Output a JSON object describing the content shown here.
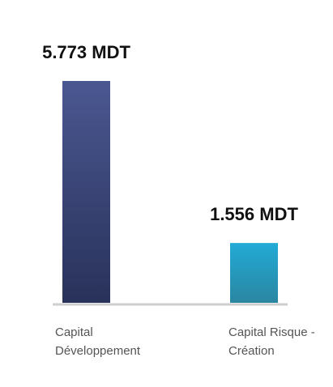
{
  "chart_data": {
    "type": "bar",
    "categories": [
      "Capital Développement",
      "Capital Risque - Création"
    ],
    "values": [
      5.773,
      1.556
    ],
    "value_labels": [
      "5.773 MDT",
      "1.556 MDT"
    ],
    "colors": [
      [
        "#4b5791",
        "#29325a"
      ],
      [
        "#22abd6",
        "#2a86a1"
      ]
    ]
  }
}
